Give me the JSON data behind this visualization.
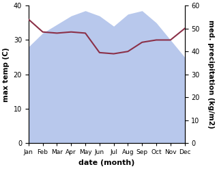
{
  "months": [
    "Jan",
    "Feb",
    "Mar",
    "Apr",
    "May",
    "Jun",
    "Jul",
    "Aug",
    "Sep",
    "Oct",
    "Nov",
    "Dec"
  ],
  "max_temp": [
    28,
    32,
    34.5,
    37,
    38.5,
    37,
    34,
    37.5,
    38.5,
    35,
    30,
    25
  ],
  "med_precip": [
    54,
    48.5,
    48,
    48.5,
    48,
    39.5,
    39,
    40,
    44,
    45,
    45,
    50
  ],
  "temp_fill_color": "#b8c8ec",
  "precip_color": "#8b3048",
  "left_ylabel": "max temp (C)",
  "right_ylabel": "med. precipitation (kg/m2)",
  "xlabel": "date (month)",
  "ylim_left": [
    0,
    40
  ],
  "ylim_right": [
    0,
    60
  ],
  "yticks_left": [
    0,
    10,
    20,
    30,
    40
  ],
  "yticks_right": [
    0,
    10,
    20,
    30,
    40,
    50,
    60
  ]
}
